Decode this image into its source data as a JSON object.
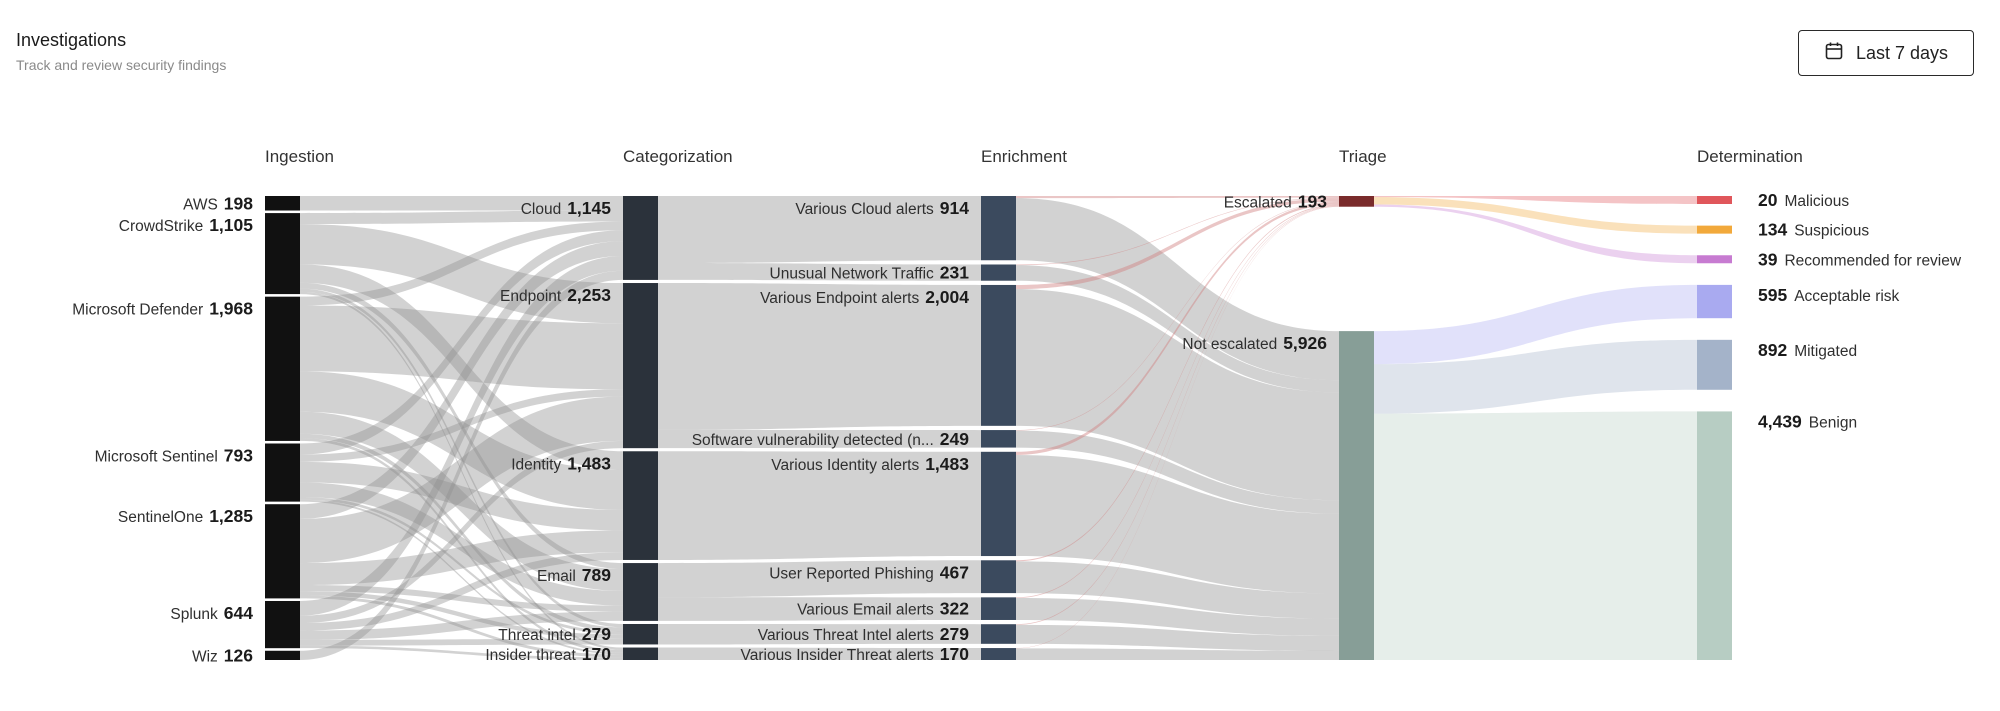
{
  "header": {
    "title": "Investigations",
    "subtitle": "Track and review security findings",
    "date_range_label": "Last 7 days",
    "date_icon": "calendar-icon"
  },
  "chart_data": {
    "type": "sankey",
    "stages": [
      "Ingestion",
      "Categorization",
      "Enrichment",
      "Triage",
      "Determination"
    ],
    "nodes": [
      {
        "id": "aws",
        "stage": 0,
        "name": "AWS",
        "value": 198,
        "display": "198",
        "color": "#111111"
      },
      {
        "id": "crowdstrike",
        "stage": 0,
        "name": "CrowdStrike",
        "value": 1105,
        "display": "1,105",
        "color": "#111111"
      },
      {
        "id": "defender",
        "stage": 0,
        "name": "Microsoft Defender",
        "value": 1968,
        "display": "1,968",
        "color": "#111111"
      },
      {
        "id": "sentinel",
        "stage": 0,
        "name": "Microsoft Sentinel",
        "value": 793,
        "display": "793",
        "color": "#111111"
      },
      {
        "id": "sentinelone",
        "stage": 0,
        "name": "SentinelOne",
        "value": 1285,
        "display": "1,285",
        "color": "#111111"
      },
      {
        "id": "splunk",
        "stage": 0,
        "name": "Splunk",
        "value": 644,
        "display": "644",
        "color": "#111111"
      },
      {
        "id": "wiz",
        "stage": 0,
        "name": "Wiz",
        "value": 126,
        "display": "126",
        "color": "#111111"
      },
      {
        "id": "cloud",
        "stage": 1,
        "name": "Cloud",
        "value": 1145,
        "display": "1,145",
        "color": "#2b323b"
      },
      {
        "id": "endpoint",
        "stage": 1,
        "name": "Endpoint",
        "value": 2253,
        "display": "2,253",
        "color": "#2b323b"
      },
      {
        "id": "identity",
        "stage": 1,
        "name": "Identity",
        "value": 1483,
        "display": "1,483",
        "color": "#2b323b"
      },
      {
        "id": "email",
        "stage": 1,
        "name": "Email",
        "value": 789,
        "display": "789",
        "color": "#2b323b"
      },
      {
        "id": "threatintel",
        "stage": 1,
        "name": "Threat intel",
        "value": 279,
        "display": "279",
        "color": "#2b323b"
      },
      {
        "id": "insider",
        "stage": 1,
        "name": "Insider threat",
        "value": 170,
        "display": "170",
        "color": "#2b323b"
      },
      {
        "id": "vcloud",
        "stage": 2,
        "name": "Various Cloud alerts",
        "value": 914,
        "display": "914",
        "color": "#3b4a5e"
      },
      {
        "id": "unusual",
        "stage": 2,
        "name": "Unusual Network Traffic",
        "value": 231,
        "display": "231",
        "color": "#3b4a5e"
      },
      {
        "id": "vendpoint",
        "stage": 2,
        "name": "Various Endpoint alerts",
        "value": 2004,
        "display": "2,004",
        "color": "#3b4a5e"
      },
      {
        "id": "softvuln",
        "stage": 2,
        "name": "Software vulnerability detected (n...",
        "value": 249,
        "display": "249",
        "color": "#3b4a5e"
      },
      {
        "id": "videntity",
        "stage": 2,
        "name": "Various Identity alerts",
        "value": 1483,
        "display": "1,483",
        "color": "#3b4a5e"
      },
      {
        "id": "phishing",
        "stage": 2,
        "name": "User Reported Phishing",
        "value": 467,
        "display": "467",
        "color": "#3b4a5e"
      },
      {
        "id": "vemail",
        "stage": 2,
        "name": "Various Email alerts",
        "value": 322,
        "display": "322",
        "color": "#3b4a5e"
      },
      {
        "id": "vthreat",
        "stage": 2,
        "name": "Various Threat Intel alerts",
        "value": 279,
        "display": "279",
        "color": "#3b4a5e"
      },
      {
        "id": "vinsider",
        "stage": 2,
        "name": "Various Insider Threat alerts",
        "value": 170,
        "display": "170",
        "color": "#3b4a5e"
      },
      {
        "id": "escalated",
        "stage": 3,
        "name": "Escalated",
        "value": 193,
        "display": "193",
        "color": "#7a2b2b",
        "label_color": "#b3261e"
      },
      {
        "id": "notescalated",
        "stage": 3,
        "name": "Not escalated",
        "value": 5926,
        "display": "5,926",
        "color": "#879e97"
      },
      {
        "id": "malicious",
        "stage": 4,
        "name": "Malicious",
        "value": 20,
        "display": "20",
        "color": "#e0565b",
        "value_color": "#c4262e"
      },
      {
        "id": "suspicious",
        "stage": 4,
        "name": "Suspicious",
        "value": 134,
        "display": "134",
        "color": "#f2a93b",
        "value_color": "#c4262e"
      },
      {
        "id": "review",
        "stage": 4,
        "name": "Recommended for review",
        "value": 39,
        "display": "39",
        "color": "#c77bd1",
        "value_color": "#c4262e"
      },
      {
        "id": "acceptable",
        "stage": 4,
        "name": "Acceptable risk",
        "value": 595,
        "display": "595",
        "color": "#a9aaf0"
      },
      {
        "id": "mitigated",
        "stage": 4,
        "name": "Mitigated",
        "value": 892,
        "display": "892",
        "color": "#a4b3c9"
      },
      {
        "id": "benign",
        "stage": 4,
        "name": "Benign",
        "value": 4439,
        "display": "4,439",
        "color": "#b7cdc3"
      }
    ],
    "links": [
      {
        "source": "aws",
        "target": "cloud",
        "value": 198
      },
      {
        "source": "crowdstrike",
        "target": "cloud",
        "value": 150
      },
      {
        "source": "crowdstrike",
        "target": "endpoint",
        "value": 550
      },
      {
        "source": "crowdstrike",
        "target": "identity",
        "value": 250
      },
      {
        "source": "crowdstrike",
        "target": "email",
        "value": 80
      },
      {
        "source": "crowdstrike",
        "target": "threatintel",
        "value": 45
      },
      {
        "source": "crowdstrike",
        "target": "insider",
        "value": 30
      },
      {
        "source": "defender",
        "target": "cloud",
        "value": 120
      },
      {
        "source": "defender",
        "target": "endpoint",
        "value": 900
      },
      {
        "source": "defender",
        "target": "identity",
        "value": 550
      },
      {
        "source": "defender",
        "target": "email",
        "value": 300
      },
      {
        "source": "defender",
        "target": "threatintel",
        "value": 58
      },
      {
        "source": "defender",
        "target": "insider",
        "value": 40
      },
      {
        "source": "sentinel",
        "target": "cloud",
        "value": 150
      },
      {
        "source": "sentinel",
        "target": "endpoint",
        "value": 100
      },
      {
        "source": "sentinel",
        "target": "identity",
        "value": 280
      },
      {
        "source": "sentinel",
        "target": "email",
        "value": 200
      },
      {
        "source": "sentinel",
        "target": "threatintel",
        "value": 38
      },
      {
        "source": "sentinel",
        "target": "insider",
        "value": 25
      },
      {
        "source": "sentinelone",
        "target": "cloud",
        "value": 200
      },
      {
        "source": "sentinelone",
        "target": "endpoint",
        "value": 603
      },
      {
        "source": "sentinelone",
        "target": "identity",
        "value": 300
      },
      {
        "source": "sentinelone",
        "target": "email",
        "value": 82
      },
      {
        "source": "sentinelone",
        "target": "threatintel",
        "value": 60
      },
      {
        "source": "sentinelone",
        "target": "insider",
        "value": 40
      },
      {
        "source": "splunk",
        "target": "cloud",
        "value": 201
      },
      {
        "source": "splunk",
        "target": "endpoint",
        "value": 100
      },
      {
        "source": "splunk",
        "target": "identity",
        "value": 103
      },
      {
        "source": "splunk",
        "target": "email",
        "value": 127
      },
      {
        "source": "splunk",
        "target": "threatintel",
        "value": 78
      },
      {
        "source": "splunk",
        "target": "insider",
        "value": 35
      },
      {
        "source": "wiz",
        "target": "cloud",
        "value": 126
      },
      {
        "source": "cloud",
        "target": "vcloud",
        "value": 914
      },
      {
        "source": "cloud",
        "target": "unusual",
        "value": 231
      },
      {
        "source": "endpoint",
        "target": "vendpoint",
        "value": 2004
      },
      {
        "source": "endpoint",
        "target": "softvuln",
        "value": 249
      },
      {
        "source": "identity",
        "target": "videntity",
        "value": 1483
      },
      {
        "source": "email",
        "target": "phishing",
        "value": 467
      },
      {
        "source": "email",
        "target": "vemail",
        "value": 322
      },
      {
        "source": "threatintel",
        "target": "vthreat",
        "value": 279
      },
      {
        "source": "insider",
        "target": "vinsider",
        "value": 170
      },
      {
        "source": "vcloud",
        "target": "escalated",
        "value": 30
      },
      {
        "source": "vcloud",
        "target": "notescalated",
        "value": 884
      },
      {
        "source": "unusual",
        "target": "escalated",
        "value": 10
      },
      {
        "source": "unusual",
        "target": "notescalated",
        "value": 221
      },
      {
        "source": "vendpoint",
        "target": "escalated",
        "value": 60
      },
      {
        "source": "vendpoint",
        "target": "notescalated",
        "value": 1944
      },
      {
        "source": "softvuln",
        "target": "escalated",
        "value": 8
      },
      {
        "source": "softvuln",
        "target": "notescalated",
        "value": 241
      },
      {
        "source": "videntity",
        "target": "escalated",
        "value": 45
      },
      {
        "source": "videntity",
        "target": "notescalated",
        "value": 1438
      },
      {
        "source": "phishing",
        "target": "escalated",
        "value": 15
      },
      {
        "source": "phishing",
        "target": "notescalated",
        "value": 452
      },
      {
        "source": "vemail",
        "target": "escalated",
        "value": 10
      },
      {
        "source": "vemail",
        "target": "notescalated",
        "value": 312
      },
      {
        "source": "vthreat",
        "target": "escalated",
        "value": 10
      },
      {
        "source": "vthreat",
        "target": "notescalated",
        "value": 269
      },
      {
        "source": "vinsider",
        "target": "escalated",
        "value": 5
      },
      {
        "source": "vinsider",
        "target": "notescalated",
        "value": 165
      },
      {
        "source": "escalated",
        "target": "malicious",
        "value": 20
      },
      {
        "source": "escalated",
        "target": "suspicious",
        "value": 134
      },
      {
        "source": "escalated",
        "target": "review",
        "value": 39
      },
      {
        "source": "notescalated",
        "target": "acceptable",
        "value": 595
      },
      {
        "source": "notescalated",
        "target": "mitigated",
        "value": 892
      },
      {
        "source": "notescalated",
        "target": "benign",
        "value": 4439
      }
    ]
  }
}
